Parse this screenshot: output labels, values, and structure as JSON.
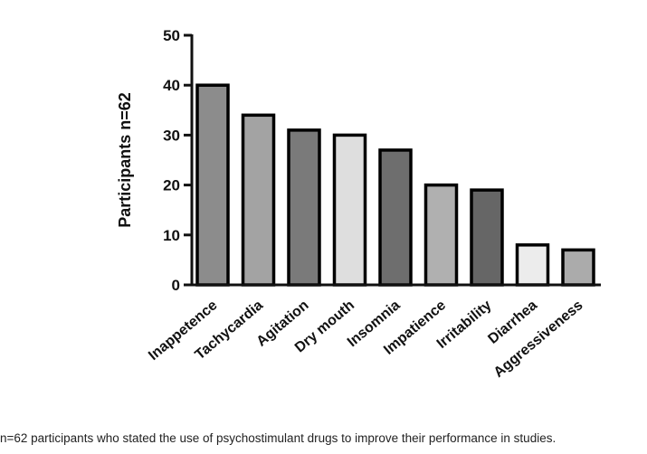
{
  "chart_data": {
    "type": "bar",
    "title": "",
    "xlabel": "",
    "ylabel": "Participants n=62",
    "ylim": [
      0,
      50
    ],
    "yticks": [
      0,
      10,
      20,
      30,
      40,
      50
    ],
    "grid": false,
    "categories": [
      "Inappetence",
      "Tachycardia",
      "Agitation",
      "Dry mouth",
      "Insomnia",
      "Impatience",
      "Irritability",
      "Diarrhea",
      "Aggressiveness"
    ],
    "values": [
      40,
      34,
      31,
      30,
      27,
      20,
      19,
      8,
      7
    ],
    "colors": [
      "#8c8c8c",
      "#a3a3a3",
      "#7a7a7a",
      "#dedede",
      "#6e6e6e",
      "#b0b0b0",
      "#666666",
      "#ececec",
      "#ababab"
    ]
  },
  "caption": "n=62 participants who stated the use of psychostimulant drugs to improve their performance in studies."
}
